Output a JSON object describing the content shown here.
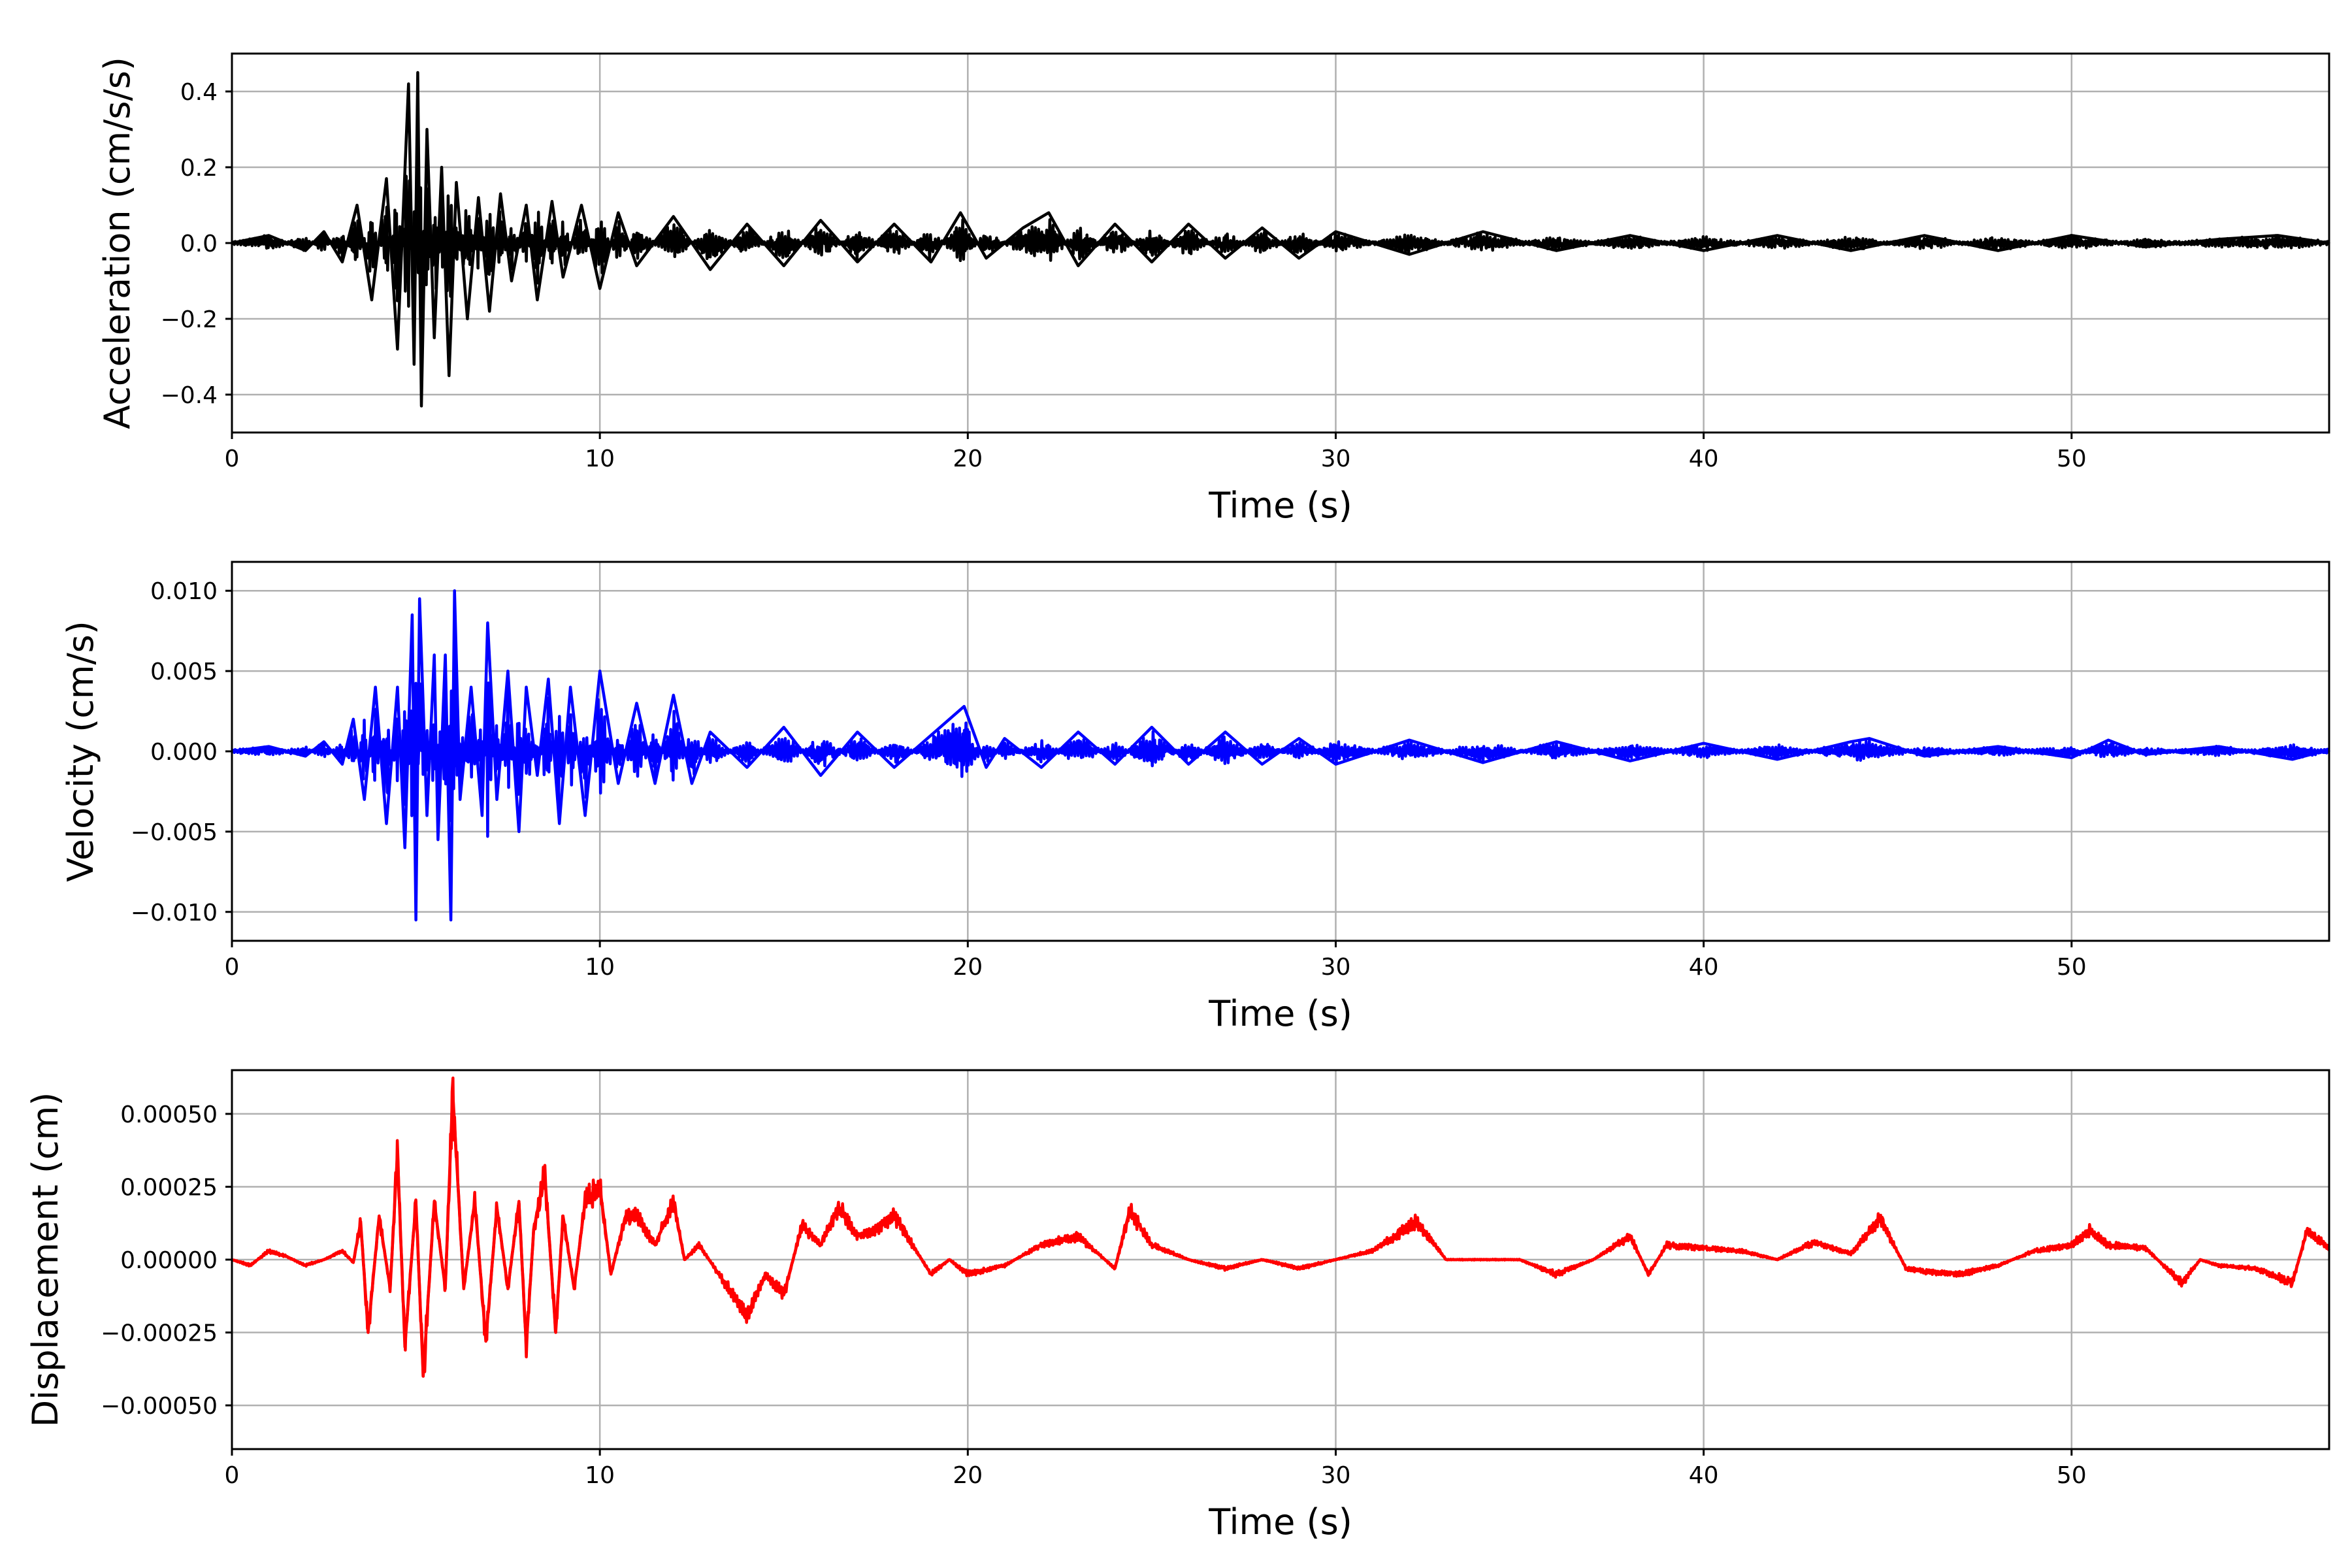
{
  "chart_data": [
    {
      "type": "line",
      "ylabel": "Acceleration (cm/s/s)",
      "xlabel": "Time (s)",
      "xlim": [
        0,
        57
      ],
      "ylim": [
        -0.5,
        0.5
      ],
      "xticks": [
        0,
        10,
        20,
        30,
        40,
        50
      ],
      "xtick_labels": [
        "0",
        "10",
        "20",
        "30",
        "40",
        "50"
      ],
      "yticks": [
        -0.4,
        -0.2,
        0.0,
        0.2,
        0.4
      ],
      "ytick_labels": [
        "−0.4",
        "−0.2",
        "0.0",
        "0.2",
        "0.4"
      ],
      "grid": true,
      "color": "#000000",
      "series": [
        {
          "x": [
            0,
            1,
            2,
            2.5,
            3,
            3.4,
            3.8,
            4.2,
            4.5,
            4.8,
            4.95,
            5.05,
            5.15,
            5.3,
            5.5,
            5.7,
            5.9,
            6.1,
            6.4,
            6.7,
            7.0,
            7.3,
            7.6,
            8.0,
            8.3,
            8.7,
            9.0,
            9.5,
            10.0,
            10.5,
            11,
            12,
            13,
            14,
            15,
            16,
            17,
            18,
            19,
            19.8,
            20.5,
            21.5,
            22.2,
            23,
            24,
            25,
            26,
            27,
            28,
            29,
            30,
            32,
            34,
            36,
            38,
            40,
            42,
            44,
            46,
            48,
            50,
            52,
            54,
            55.6,
            57
          ],
          "y": [
            0.0,
            0.02,
            -0.02,
            0.03,
            -0.05,
            0.1,
            -0.15,
            0.17,
            -0.28,
            0.42,
            -0.32,
            0.45,
            -0.43,
            0.3,
            -0.25,
            0.2,
            -0.35,
            0.16,
            -0.2,
            0.12,
            -0.18,
            0.13,
            -0.1,
            0.1,
            -0.15,
            0.11,
            -0.09,
            0.1,
            -0.12,
            0.08,
            -0.06,
            0.07,
            -0.07,
            0.05,
            -0.06,
            0.06,
            -0.05,
            0.05,
            -0.05,
            0.08,
            -0.04,
            0.04,
            0.08,
            -0.06,
            0.05,
            -0.05,
            0.05,
            -0.04,
            0.04,
            -0.04,
            0.03,
            -0.03,
            0.03,
            -0.02,
            0.02,
            -0.02,
            0.02,
            -0.02,
            0.02,
            -0.02,
            0.02,
            -0.01,
            0.01,
            0.02,
            0.0
          ]
        }
      ]
    },
    {
      "type": "line",
      "ylabel": "Velocity (cm/s)",
      "xlabel": "Time (s)",
      "xlim": [
        0,
        57
      ],
      "ylim": [
        -0.0118,
        0.0118
      ],
      "xticks": [
        0,
        10,
        20,
        30,
        40,
        50
      ],
      "xtick_labels": [
        "0",
        "10",
        "20",
        "30",
        "40",
        "50"
      ],
      "yticks": [
        -0.01,
        -0.005,
        0.0,
        0.005,
        0.01
      ],
      "ytick_labels": [
        "−0.010",
        "−0.005",
        "0.000",
        "0.005",
        "0.010"
      ],
      "grid": true,
      "color": "#0000ff",
      "series": [
        {
          "x": [
            0,
            1,
            2,
            2.5,
            3.0,
            3.3,
            3.6,
            3.9,
            4.2,
            4.5,
            4.7,
            4.9,
            5.0,
            5.1,
            5.3,
            5.5,
            5.6,
            5.8,
            5.95,
            6.05,
            6.2,
            6.5,
            6.8,
            6.95,
            7.2,
            7.5,
            7.8,
            8.0,
            8.3,
            8.6,
            8.9,
            9.2,
            9.6,
            10.0,
            10.5,
            11,
            11.5,
            12.0,
            12.5,
            13,
            14,
            15,
            16,
            17,
            18,
            19,
            19.9,
            20.5,
            21,
            22,
            23,
            24,
            25,
            26,
            27,
            28,
            29,
            30,
            32,
            34,
            36,
            38,
            40,
            42,
            44,
            44.5,
            46,
            48,
            50,
            51,
            52,
            54,
            56,
            57
          ],
          "y": [
            0.0,
            0.0003,
            -0.0003,
            0.0006,
            -0.0008,
            0.002,
            -0.003,
            0.004,
            -0.0045,
            0.004,
            -0.006,
            0.0085,
            -0.0105,
            0.0095,
            -0.004,
            0.006,
            -0.0055,
            0.006,
            -0.0105,
            0.01,
            -0.003,
            0.004,
            -0.004,
            0.008,
            -0.003,
            0.005,
            -0.005,
            0.004,
            -0.0015,
            0.0045,
            -0.0045,
            0.004,
            -0.004,
            0.005,
            -0.002,
            0.003,
            -0.002,
            0.0035,
            -0.002,
            0.0012,
            -0.001,
            0.0015,
            -0.0015,
            0.0012,
            -0.001,
            0.001,
            0.0028,
            -0.001,
            0.0008,
            -0.001,
            0.0012,
            -0.0008,
            0.0015,
            -0.0008,
            0.0012,
            -0.0008,
            0.0008,
            -0.0008,
            0.0007,
            -0.0007,
            0.0006,
            -0.0006,
            0.0005,
            -0.0005,
            0.0006,
            0.0008,
            -0.0003,
            0.0003,
            -0.0004,
            0.0007,
            -0.0002,
            0.0003,
            -0.0005,
            0.0001
          ]
        }
      ]
    },
    {
      "type": "line",
      "ylabel": "Displacement (cm)",
      "xlabel": "Time (s)",
      "xlim": [
        0,
        57
      ],
      "ylim": [
        -0.00065,
        0.00065
      ],
      "xticks": [
        0,
        10,
        20,
        30,
        40,
        50
      ],
      "xtick_labels": [
        "0",
        "10",
        "20",
        "30",
        "40",
        "50"
      ],
      "yticks": [
        -0.0005,
        -0.00025,
        0.0,
        0.00025,
        0.0005
      ],
      "ytick_labels": [
        "−0.00050",
        "−0.00025",
        "0.00000",
        "0.00025",
        "0.00050"
      ],
      "grid": true,
      "color": "#ff0000",
      "series": [
        {
          "x": [
            0,
            0.5,
            1.0,
            1.5,
            2.0,
            2.5,
            3.0,
            3.3,
            3.5,
            3.7,
            4.0,
            4.3,
            4.5,
            4.7,
            5.0,
            5.2,
            5.5,
            5.8,
            6.0,
            6.3,
            6.6,
            6.9,
            7.2,
            7.5,
            7.8,
            8.0,
            8.2,
            8.5,
            8.8,
            9.0,
            9.3,
            9.6,
            10.0,
            10.3,
            10.7,
            11,
            11.5,
            12.0,
            12.3,
            12.7,
            13.5,
            14.0,
            14.5,
            15.0,
            15.5,
            16.0,
            16.5,
            17.0,
            17.5,
            18.0,
            18.5,
            19,
            19.5,
            20,
            21,
            22,
            23,
            24,
            24.4,
            25,
            26,
            27,
            28,
            29,
            30,
            31,
            32.2,
            33,
            34,
            35,
            36,
            37,
            38,
            38.5,
            39,
            40,
            41,
            42,
            43,
            44,
            44.8,
            45.5,
            46,
            47,
            48,
            49,
            50,
            50.5,
            51,
            52,
            53,
            53.5,
            54,
            55,
            56,
            56.4,
            57
          ],
          "y": [
            0.0,
            -2e-05,
            3e-05,
            1e-05,
            -2e-05,
            0.0,
            3e-05,
            -1e-05,
            0.00013,
            -0.00025,
            0.00015,
            -0.0001,
            0.00037,
            -0.0003,
            0.0002,
            -0.0004,
            0.0002,
            -0.0001,
            0.00058,
            -0.0001,
            0.0002,
            -0.00028,
            0.00018,
            -0.0001,
            0.0002,
            -0.0003,
            0.0001,
            0.0003,
            -0.00025,
            0.00015,
            -0.0001,
            0.0002,
            0.00025,
            -5e-05,
            0.00015,
            0.00015,
            5e-05,
            0.0002,
            0.0,
            5e-05,
            -0.0001,
            -0.00019,
            -5e-05,
            -0.00012,
            0.00012,
            5e-05,
            0.00018,
            8e-05,
            0.0001,
            0.00015,
            5e-05,
            -5e-05,
            0.0,
            -5e-05,
            -2e-05,
            5e-05,
            8e-05,
            -3e-05,
            0.00017,
            5e-05,
            0.0,
            -3e-05,
            0.0,
            -3e-05,
            0.0,
            3e-05,
            0.00013,
            0.0,
            0.0,
            0.0,
            -5e-05,
            0.0,
            8e-05,
            -5e-05,
            5e-05,
            4e-05,
            3e-05,
            0.0,
            6e-05,
            2e-05,
            0.00014,
            -3e-05,
            -4e-05,
            -5e-05,
            -2e-05,
            3e-05,
            5e-05,
            0.0001,
            5e-05,
            4e-05,
            -8e-05,
            0.0,
            -2e-05,
            -3e-05,
            -8e-05,
            0.0001,
            4e-05
          ]
        }
      ]
    }
  ]
}
